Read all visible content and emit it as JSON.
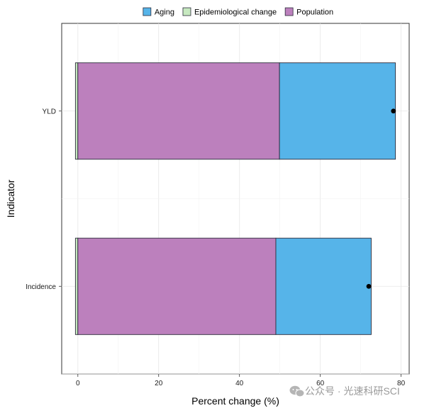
{
  "chart_data": {
    "type": "bar",
    "orientation": "horizontal",
    "stacked": true,
    "categories": [
      "YLD",
      "Incidence"
    ],
    "series": [
      {
        "name": "Aging",
        "color": "#56B4E9",
        "values": [
          28.7,
          23.6
        ]
      },
      {
        "name": "Epidemiological change",
        "color": "#C7E9C0",
        "values": [
          -0.6,
          -0.6
        ]
      },
      {
        "name": "Population",
        "color": "#BC80BD",
        "values": [
          49.9,
          49.0
        ]
      }
    ],
    "overall_points": [
      78.1,
      72.0
    ],
    "xlabel": "Percent change (%)",
    "ylabel": "Indicator",
    "xlim": [
      -4,
      82
    ],
    "xticks": [
      0,
      20,
      40,
      60,
      80
    ],
    "xtick_labels": [
      "0",
      "20",
      "40",
      "60",
      "80"
    ],
    "legend_position": "top",
    "grid": true
  },
  "watermark": {
    "icon": "wechat-icon",
    "text": "公众号 · 光速科研SCI"
  }
}
